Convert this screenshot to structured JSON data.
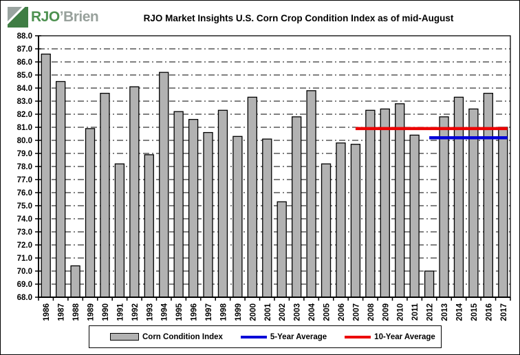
{
  "header": {
    "logo": {
      "rjo": "RJO",
      "brien": "’Brien",
      "colors": {
        "green": "#4d9150",
        "gray": "#98a19c",
        "icon_green": "#3f7d44",
        "icon_gray": "#9aa4a0"
      }
    }
  },
  "chart_data": {
    "type": "bar",
    "title": "RJO Market Insights U.S. Corn Crop Condition Index as of mid-August",
    "categories": [
      "1986",
      "1987",
      "1988",
      "1989",
      "1990",
      "1991",
      "1992",
      "1993",
      "1994",
      "1995",
      "1996",
      "1997",
      "1998",
      "1999",
      "2000",
      "2001",
      "2002",
      "2003",
      "2004",
      "2005",
      "2006",
      "2007",
      "2008",
      "2009",
      "2010",
      "2011",
      "2012",
      "2013",
      "2014",
      "2015",
      "2016",
      "2017"
    ],
    "values": [
      86.6,
      84.5,
      70.4,
      80.9,
      83.6,
      78.2,
      84.1,
      78.9,
      85.2,
      82.2,
      81.6,
      80.6,
      82.3,
      80.3,
      83.3,
      80.1,
      75.3,
      81.8,
      83.8,
      78.2,
      79.8,
      79.7,
      82.3,
      82.4,
      82.8,
      80.4,
      70.0,
      81.8,
      83.3,
      82.4,
      83.6,
      81.0
    ],
    "series_label": "Corn Condition Index",
    "ylim": [
      68.0,
      88.0
    ],
    "ytick_step": 1.0,
    "ytick_format": "0.0",
    "xlabel": "",
    "ylabel": "",
    "grid": "horizontal dash-dot every 1.0",
    "legend_position": "bottom",
    "bar_color": "#b2b2b2",
    "bar_border_color": "#000000",
    "averages": [
      {
        "label": "5-Year Average",
        "value": 80.2,
        "color": "#0000d8",
        "from_year": "2012",
        "to_year": "2017"
      },
      {
        "label": "10-Year Average",
        "value": 80.9,
        "color": "#ec0000",
        "from_year": "2007",
        "to_year": "2017"
      }
    ]
  }
}
